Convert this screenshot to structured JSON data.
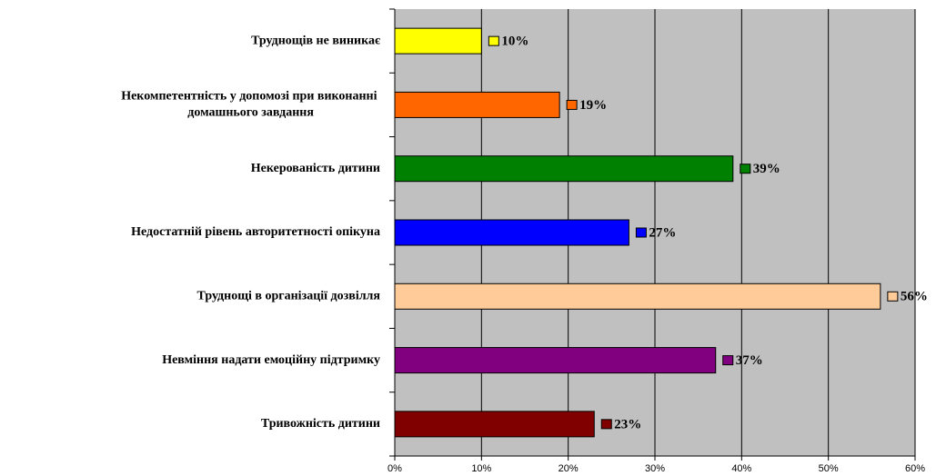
{
  "chart_data": {
    "type": "barh",
    "categories": [
      "Труднощів не виникає",
      "Некомпетентність у допомозі при виконанні домашнього завдання",
      "Некерованість дитини",
      "Недостатній рівень авторитетності опікуна",
      "Труднощі в організації дозвілля",
      "Невміння надати емоційну підтримку",
      "Тривожність дитини"
    ],
    "values": [
      10,
      19,
      39,
      27,
      56,
      37,
      23
    ],
    "value_labels": [
      "10%",
      "19%",
      "39%",
      "27%",
      "56%",
      "37%",
      "23%"
    ],
    "colors": [
      "#ffff00",
      "#ff6600",
      "#008000",
      "#0000ff",
      "#ffcc99",
      "#800080",
      "#800000"
    ],
    "xlim": [
      0,
      60
    ],
    "xticks": [
      {
        "value": 0,
        "label": "0%"
      },
      {
        "value": 10,
        "label": "10%"
      },
      {
        "value": 20,
        "label": "20%"
      },
      {
        "value": 30,
        "label": "30%"
      },
      {
        "value": 40,
        "label": "40%"
      },
      {
        "value": 50,
        "label": "50%"
      },
      {
        "value": 60,
        "label": "60%"
      }
    ],
    "grid": true
  }
}
